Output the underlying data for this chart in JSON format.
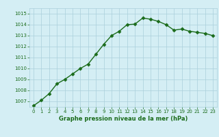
{
  "x": [
    0,
    1,
    2,
    3,
    4,
    5,
    6,
    7,
    8,
    9,
    10,
    11,
    12,
    13,
    14,
    15,
    16,
    17,
    18,
    19,
    20,
    21,
    22,
    23
  ],
  "y": [
    1006.6,
    1007.1,
    1007.7,
    1008.6,
    1009.0,
    1009.5,
    1010.0,
    1010.4,
    1011.3,
    1012.2,
    1013.0,
    1013.4,
    1014.0,
    1014.05,
    1014.6,
    1014.5,
    1014.3,
    1014.0,
    1013.5,
    1013.6,
    1013.4,
    1013.3,
    1013.2,
    1013.0
  ],
  "ylim": [
    1006.5,
    1015.5
  ],
  "yticks": [
    1007,
    1008,
    1009,
    1010,
    1011,
    1012,
    1013,
    1014,
    1015
  ],
  "xlim": [
    -0.5,
    23.5
  ],
  "xticks": [
    0,
    1,
    2,
    3,
    4,
    5,
    6,
    7,
    8,
    9,
    10,
    11,
    12,
    13,
    14,
    15,
    16,
    17,
    18,
    19,
    20,
    21,
    22,
    23
  ],
  "xlabel": "Graphe pression niveau de la mer (hPa)",
  "line_color": "#1a6b1a",
  "marker": "D",
  "marker_size": 2.5,
  "background_color": "#d4eef4",
  "grid_color": "#aacfdb",
  "tick_label_color": "#1a6b1a",
  "xlabel_color": "#1a6b1a",
  "line_width": 1.0
}
